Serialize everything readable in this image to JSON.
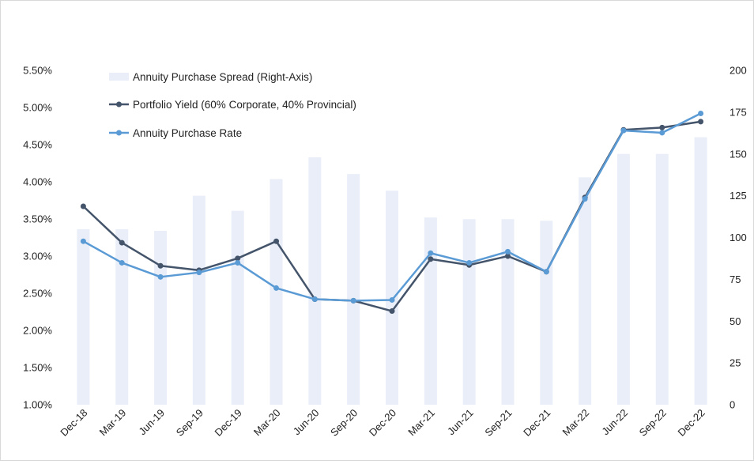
{
  "chart_data": {
    "type": "bar+line",
    "categories": [
      "Dec-18",
      "Mar-19",
      "Jun-19",
      "Sep-19",
      "Dec-19",
      "Mar-20",
      "Jun-20",
      "Sep-20",
      "Dec-20",
      "Mar-21",
      "Jun-21",
      "Sep-21",
      "Dec-21",
      "Mar-22",
      "Jun-22",
      "Sep-22",
      "Dec-22"
    ],
    "series": [
      {
        "name": "Annuity Purchase Spread (Right-Axis)",
        "type": "bar",
        "axis": "right",
        "color": "#e9eef8",
        "values": [
          105,
          105,
          104,
          125,
          116,
          135,
          148,
          138,
          128,
          112,
          111,
          111,
          110,
          136,
          150,
          150,
          160
        ]
      },
      {
        "name": "Portfolio Yield (60% Corporate, 40% Provincial)",
        "type": "line",
        "axis": "left",
        "color": "#44546a",
        "values": [
          3.67,
          3.18,
          2.87,
          2.81,
          2.97,
          3.2,
          2.42,
          2.4,
          2.26,
          2.96,
          2.88,
          3.0,
          2.79,
          3.79,
          4.7,
          4.73,
          4.81
        ]
      },
      {
        "name": "Annuity Purchase Rate",
        "type": "line",
        "axis": "left",
        "color": "#5b9bd5",
        "values": [
          3.2,
          2.91,
          2.72,
          2.78,
          2.91,
          2.57,
          2.42,
          2.4,
          2.41,
          3.04,
          2.91,
          3.06,
          2.79,
          3.77,
          4.69,
          4.66,
          4.92
        ]
      }
    ],
    "left_axis": {
      "min": 1.0,
      "max": 5.5,
      "step": 0.5,
      "tick_labels": [
        "1.00%",
        "1.50%",
        "2.00%",
        "2.50%",
        "3.00%",
        "3.50%",
        "4.00%",
        "4.50%",
        "5.00%",
        "5.50%"
      ]
    },
    "right_axis": {
      "min": 0,
      "max": 200,
      "step": 25,
      "tick_labels": [
        "0",
        "25",
        "50",
        "75",
        "100",
        "125",
        "150",
        "175",
        "200"
      ]
    },
    "grid": false,
    "legend_position": "top-left"
  }
}
